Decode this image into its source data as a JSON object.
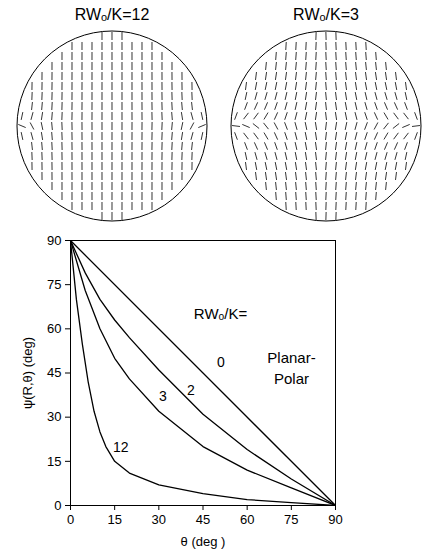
{
  "panels": [
    {
      "title": "RWₒ/K=12"
    },
    {
      "title": "RWₒ/K=3"
    }
  ],
  "chart_data": {
    "type": "line",
    "x_label": "θ (deg )",
    "y_label": "ψ(R,θ) (deg)",
    "xlim": [
      0,
      90
    ],
    "ylim": [
      0,
      90
    ],
    "xticks": [
      0,
      15,
      30,
      45,
      60,
      75,
      90
    ],
    "yticks": [
      0,
      15,
      30,
      45,
      60,
      75,
      90
    ],
    "color": "#000000",
    "annotations": [
      "RWₒ/K=",
      "Planar-",
      "Polar"
    ],
    "series": [
      {
        "name": "0",
        "x": [
          0,
          45,
          90
        ],
        "values": [
          90,
          45,
          0
        ]
      },
      {
        "name": "2",
        "x": [
          0,
          5,
          10,
          15,
          20,
          30,
          45,
          60,
          75,
          90
        ],
        "values": [
          90,
          79,
          70,
          63,
          57,
          46,
          31,
          19,
          9,
          0
        ]
      },
      {
        "name": "3",
        "x": [
          0,
          5,
          10,
          15,
          20,
          30,
          45,
          60,
          75,
          90
        ],
        "values": [
          90,
          73,
          60,
          50,
          43,
          32,
          20,
          12,
          6,
          0
        ]
      },
      {
        "name": "12",
        "x": [
          0,
          2,
          4,
          6,
          8,
          10,
          12,
          15,
          20,
          30,
          45,
          60,
          75,
          90
        ],
        "values": [
          90,
          70,
          55,
          42,
          32,
          25,
          20,
          15,
          11,
          7,
          4,
          2,
          1,
          0
        ]
      }
    ]
  }
}
